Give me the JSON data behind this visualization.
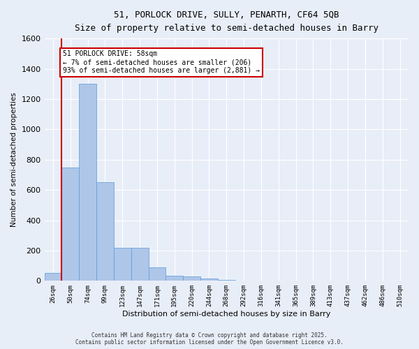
{
  "title_line1": "51, PORLOCK DRIVE, SULLY, PENARTH, CF64 5QB",
  "title_line2": "Size of property relative to semi-detached houses in Barry",
  "xlabel": "Distribution of semi-detached houses by size in Barry",
  "ylabel": "Number of semi-detached properties",
  "bar_labels": [
    "26sqm",
    "50sqm",
    "74sqm",
    "99sqm",
    "123sqm",
    "147sqm",
    "171sqm",
    "195sqm",
    "220sqm",
    "244sqm",
    "268sqm",
    "292sqm",
    "316sqm",
    "341sqm",
    "365sqm",
    "389sqm",
    "413sqm",
    "437sqm",
    "462sqm",
    "486sqm",
    "510sqm"
  ],
  "bar_values": [
    50,
    750,
    1300,
    650,
    220,
    220,
    90,
    35,
    30,
    15,
    8,
    3,
    2,
    1,
    0,
    0,
    0,
    0,
    0,
    0,
    0
  ],
  "bar_color": "#aec6e8",
  "bar_edgecolor": "#5b9bd5",
  "background_color": "#e8eef8",
  "grid_color": "#ffffff",
  "annotation_title": "51 PORLOCK DRIVE: 58sqm",
  "annotation_line1": "← 7% of semi-detached houses are smaller (206)",
  "annotation_line2": "93% of semi-detached houses are larger (2,881) →",
  "annotation_box_facecolor": "#ffffff",
  "annotation_box_edgecolor": "#cc0000",
  "red_line_color": "#cc0000",
  "ylim": [
    0,
    1600
  ],
  "yticks": [
    0,
    200,
    400,
    600,
    800,
    1000,
    1200,
    1400,
    1600
  ],
  "footer_line1": "Contains HM Land Registry data © Crown copyright and database right 2025.",
  "footer_line2": "Contains public sector information licensed under the Open Government Licence v3.0."
}
